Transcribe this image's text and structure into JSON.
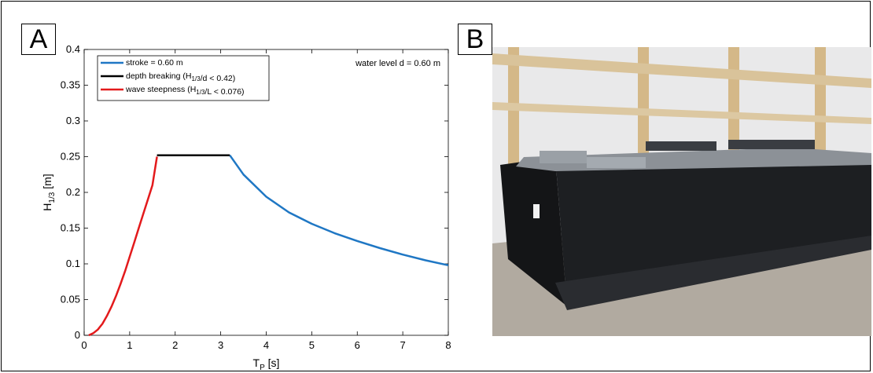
{
  "panels": {
    "a_label": "A",
    "b_label": "B"
  },
  "chart_data": {
    "type": "line",
    "xlabel_main": "T",
    "xlabel_sub": "P",
    "xlabel_unit": " [s]",
    "ylabel_main": "H",
    "ylabel_sub": "1/3",
    "ylabel_unit": " [m]",
    "xlim": [
      0,
      8
    ],
    "ylim": [
      0,
      0.4
    ],
    "xticks": [
      0,
      1,
      2,
      3,
      4,
      5,
      6,
      7,
      8
    ],
    "yticks": [
      0,
      0.05,
      0.1,
      0.15,
      0.2,
      0.25,
      0.3,
      0.35,
      0.4
    ],
    "xtick_labels": [
      "0",
      "1",
      "2",
      "3",
      "4",
      "5",
      "6",
      "7",
      "8"
    ],
    "ytick_labels": [
      "0",
      "0.05",
      "0.1",
      "0.15",
      "0.2",
      "0.25",
      "0.3",
      "0.35",
      "0.4"
    ],
    "grid": false,
    "legend_position": "top-left",
    "annotation": "water level d = 0.60 m",
    "series": [
      {
        "name": "stroke = 0.60 m",
        "legend_parts": [
          {
            "t": "stroke = 0.60 m"
          }
        ],
        "color": "#1f77c4",
        "x": [
          3.2,
          3.5,
          4.0,
          4.5,
          5.0,
          5.5,
          6.0,
          6.5,
          7.0,
          7.5,
          8.0
        ],
        "y": [
          0.252,
          0.225,
          0.194,
          0.172,
          0.156,
          0.143,
          0.132,
          0.122,
          0.113,
          0.105,
          0.098
        ]
      },
      {
        "name": "depth breaking (H1/3/d < 0.42)",
        "legend_parts": [
          {
            "t": "depth breaking (H"
          },
          {
            "t": "1/3",
            "sub": true
          },
          {
            "t": "/d < 0.42)"
          }
        ],
        "color": "#000000",
        "x": [
          1.6,
          3.2
        ],
        "y": [
          0.252,
          0.252
        ]
      },
      {
        "name": "wave steepness (H1/3/L < 0.076)",
        "legend_parts": [
          {
            "t": "wave steepness (H"
          },
          {
            "t": "1/3",
            "sub": true
          },
          {
            "t": "/L < 0.076)"
          }
        ],
        "color": "#e31a1c",
        "x": [
          0.1,
          0.2,
          0.3,
          0.4,
          0.5,
          0.6,
          0.7,
          0.8,
          0.9,
          1.0,
          1.1,
          1.2,
          1.3,
          1.4,
          1.5,
          1.6
        ],
        "y": [
          0.0,
          0.003,
          0.008,
          0.016,
          0.027,
          0.04,
          0.055,
          0.072,
          0.09,
          0.11,
          0.13,
          0.15,
          0.17,
          0.19,
          0.21,
          0.25
        ]
      }
    ]
  },
  "photo": {
    "wall_color": "#e9e9ea",
    "floor_color": "#b1aaa0",
    "box_color": "#1d1f22",
    "frame_color": "#8c9197",
    "wood_color": "#d4b888"
  }
}
